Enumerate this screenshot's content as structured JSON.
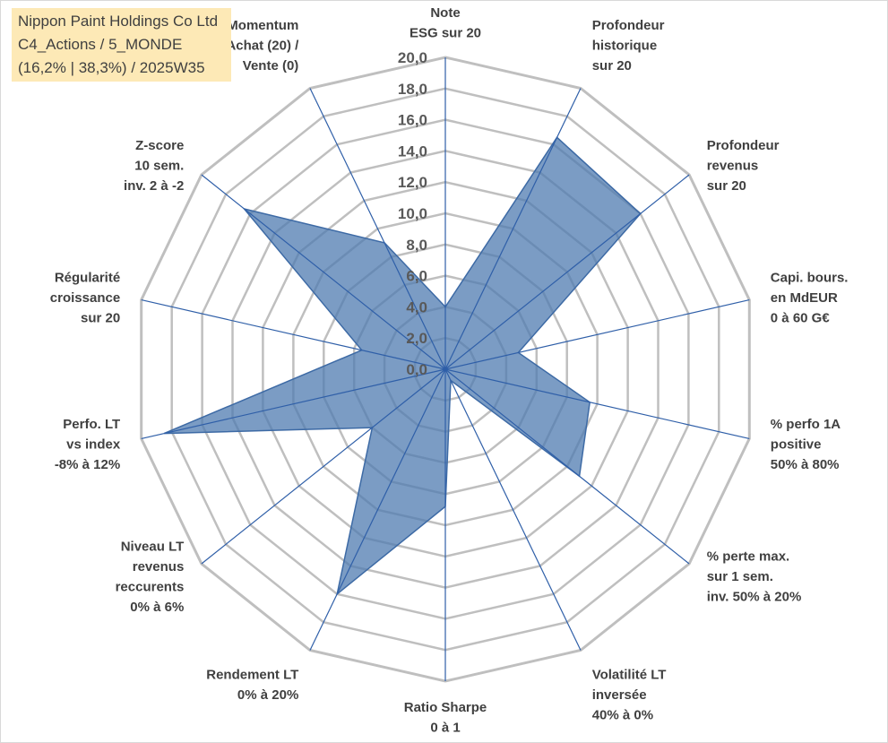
{
  "title_box": {
    "line1": "Nippon Paint Holdings Co Ltd",
    "line2": "C4_Actions / 5_MONDE",
    "line3": "(16,2% | 38,3%) / 2025W35"
  },
  "chart_data": {
    "type": "radar",
    "rmin": 0,
    "rmax": 20,
    "tick_step": 2,
    "tick_labels": [
      "0,0",
      "2,0",
      "4,0",
      "6,0",
      "8,0",
      "10,0",
      "12,0",
      "14,0",
      "16,0",
      "18,0",
      "20,0"
    ],
    "axes": [
      {
        "label": [
          "Note",
          "ESG sur 20"
        ],
        "value": 4.0
      },
      {
        "label": [
          "Profondeur",
          "historique",
          "sur 20"
        ],
        "value": 16.5
      },
      {
        "label": [
          "Profondeur",
          "revenus",
          "sur 20"
        ],
        "value": 16.0
      },
      {
        "label": [
          "Capi. bours.",
          "en MdEUR",
          "0 à 60 G€"
        ],
        "value": 4.8
      },
      {
        "label": [
          "% perfo 1A",
          "positive",
          "50% à 80%"
        ],
        "value": 9.5
      },
      {
        "label": [
          "% perte max.",
          "sur 1 sem.",
          "inv. 50% à 20%"
        ],
        "value": 11.0
      },
      {
        "label": [
          "Volatilité LT",
          "inversée",
          "40% à 0%"
        ],
        "value": 0.8
      },
      {
        "label": [
          "Ratio Sharpe",
          "0 à 1"
        ],
        "value": 8.8
      },
      {
        "label": [
          "Rendement LT",
          "0% à 20%"
        ],
        "value": 16.0
      },
      {
        "label": [
          "Niveau LT",
          "revenus",
          "reccurents",
          "0% à 6%"
        ],
        "value": 6.0
      },
      {
        "label": [
          "Perfo. LT",
          "vs index",
          "-8% à 12%"
        ],
        "value": 18.5
      },
      {
        "label": [
          "Régularité",
          "croissance",
          "sur 20"
        ],
        "value": 5.5
      },
      {
        "label": [
          "Z-score",
          "10 sem.",
          "inv. 2 à -2"
        ],
        "value": 16.5
      },
      {
        "label": [
          "Momentum",
          "Achat (20) /",
          "Vente (0)"
        ],
        "value": 9.0
      }
    ],
    "fill_color": "#4f7bb0",
    "grid_color": "#bfbfbf",
    "spoke_color": "#2f5fa8"
  }
}
